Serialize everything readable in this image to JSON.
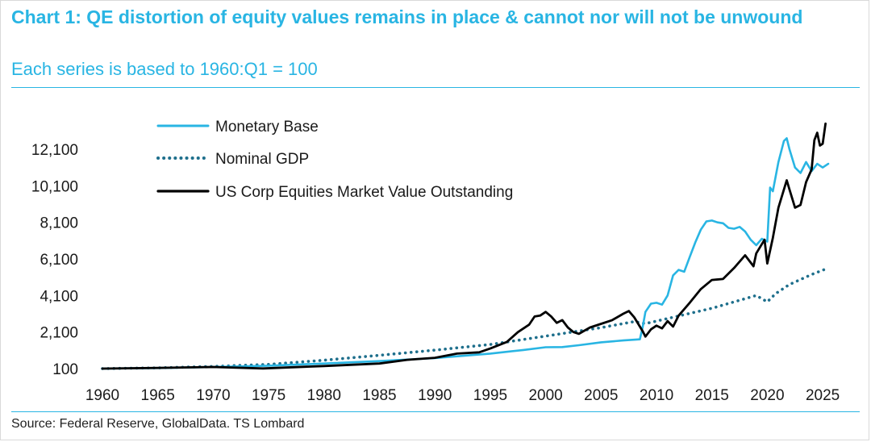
{
  "title": "Chart 1: QE distortion of equity values remains in place & cannot nor will not be unwound",
  "subtitle": "Each series is based to 1960:Q1 = 100",
  "source": "Source: Federal Reserve, GlobalData. TS Lombard",
  "colors": {
    "accent": "#29b5e3",
    "monetary_base": "#29b5e3",
    "nominal_gdp": "#1e6f8c",
    "equities": "#000000"
  },
  "chart_data": {
    "type": "line",
    "title": "Chart 1: QE distortion of equity values remains in place & cannot nor will not be unwound",
    "subtitle": "Each series is based to 1960:Q1 = 100",
    "xlabel": "",
    "ylabel": "",
    "xlim": [
      1960,
      2025.5
    ],
    "ylim": [
      100,
      12100
    ],
    "x_ticks": [
      1960,
      1965,
      1970,
      1975,
      1980,
      1985,
      1990,
      1995,
      2000,
      2005,
      2010,
      2015,
      2020,
      2025
    ],
    "y_ticks": [
      100,
      2100,
      4100,
      6100,
      8100,
      10100,
      12100
    ],
    "y_tick_labels": [
      "100",
      "2,100",
      "4,100",
      "6,100",
      "8,100",
      "10,100",
      "12,100"
    ],
    "grid": false,
    "legend_position": "top-left",
    "series": [
      {
        "name": "Monetary Base",
        "style": "solid",
        "points": [
          [
            1960,
            100
          ],
          [
            1965,
            130
          ],
          [
            1970,
            190
          ],
          [
            1975,
            260
          ],
          [
            1980,
            380
          ],
          [
            1985,
            510
          ],
          [
            1990,
            680
          ],
          [
            1995,
            920
          ],
          [
            1998,
            1120
          ],
          [
            2000,
            1270
          ],
          [
            2001.5,
            1280
          ],
          [
            2003,
            1380
          ],
          [
            2005,
            1540
          ],
          [
            2007,
            1640
          ],
          [
            2008.5,
            1700
          ],
          [
            2008.75,
            2350
          ],
          [
            2009,
            3200
          ],
          [
            2009.5,
            3650
          ],
          [
            2010,
            3700
          ],
          [
            2010.5,
            3600
          ],
          [
            2011,
            4100
          ],
          [
            2011.5,
            5200
          ],
          [
            2012,
            5500
          ],
          [
            2012.5,
            5400
          ],
          [
            2013,
            6200
          ],
          [
            2013.5,
            7000
          ],
          [
            2014,
            7700
          ],
          [
            2014.5,
            8150
          ],
          [
            2015,
            8200
          ],
          [
            2015.5,
            8100
          ],
          [
            2016,
            8050
          ],
          [
            2016.5,
            7800
          ],
          [
            2017,
            7750
          ],
          [
            2017.5,
            7850
          ],
          [
            2018,
            7600
          ],
          [
            2018.5,
            7150
          ],
          [
            2019,
            6850
          ],
          [
            2019.5,
            7200
          ],
          [
            2020,
            7050
          ],
          [
            2020.25,
            10000
          ],
          [
            2020.5,
            9800
          ],
          [
            2021,
            11400
          ],
          [
            2021.5,
            12550
          ],
          [
            2021.75,
            12700
          ],
          [
            2022,
            12100
          ],
          [
            2022.5,
            11100
          ],
          [
            2023,
            10800
          ],
          [
            2023.5,
            11400
          ],
          [
            2024,
            10900
          ],
          [
            2024.5,
            11300
          ],
          [
            2025,
            11100
          ],
          [
            2025.5,
            11300
          ]
        ]
      },
      {
        "name": "Nominal GDP",
        "style": "dotted",
        "points": [
          [
            1960,
            100
          ],
          [
            1965,
            140
          ],
          [
            1970,
            220
          ],
          [
            1975,
            330
          ],
          [
            1980,
            560
          ],
          [
            1985,
            830
          ],
          [
            1990,
            1110
          ],
          [
            1995,
            1420
          ],
          [
            2000,
            1880
          ],
          [
            2005,
            2340
          ],
          [
            2008,
            2670
          ],
          [
            2009,
            2560
          ],
          [
            2010,
            2700
          ],
          [
            2015,
            3400
          ],
          [
            2019,
            4100
          ],
          [
            2020,
            3750
          ],
          [
            2020.75,
            4200
          ],
          [
            2022,
            4700
          ],
          [
            2024,
            5250
          ],
          [
            2025.5,
            5600
          ]
        ]
      },
      {
        "name": "US Corp Equities Market Value Outstanding",
        "style": "solid",
        "points": [
          [
            1960,
            100
          ],
          [
            1965,
            140
          ],
          [
            1970,
            190
          ],
          [
            1974.5,
            110
          ],
          [
            1980,
            240
          ],
          [
            1985,
            380
          ],
          [
            1987.5,
            580
          ],
          [
            1990,
            690
          ],
          [
            1992,
            920
          ],
          [
            1994,
            990
          ],
          [
            1995,
            1200
          ],
          [
            1996.5,
            1560
          ],
          [
            1997.5,
            2100
          ],
          [
            1998.5,
            2500
          ],
          [
            1999,
            2950
          ],
          [
            1999.5,
            3000
          ],
          [
            2000,
            3200
          ],
          [
            2000.5,
            2950
          ],
          [
            2001,
            2600
          ],
          [
            2001.5,
            2750
          ],
          [
            2002,
            2350
          ],
          [
            2002.5,
            2100
          ],
          [
            2003,
            2000
          ],
          [
            2004,
            2350
          ],
          [
            2005,
            2550
          ],
          [
            2006,
            2750
          ],
          [
            2007,
            3100
          ],
          [
            2007.5,
            3250
          ],
          [
            2008,
            2900
          ],
          [
            2008.75,
            2150
          ],
          [
            2009,
            1850
          ],
          [
            2009.5,
            2250
          ],
          [
            2010,
            2450
          ],
          [
            2010.5,
            2300
          ],
          [
            2011,
            2700
          ],
          [
            2011.5,
            2400
          ],
          [
            2012,
            3000
          ],
          [
            2013,
            3700
          ],
          [
            2014,
            4450
          ],
          [
            2015,
            4950
          ],
          [
            2016,
            5000
          ],
          [
            2017,
            5600
          ],
          [
            2018,
            6300
          ],
          [
            2018.75,
            5700
          ],
          [
            2019,
            6400
          ],
          [
            2019.75,
            7150
          ],
          [
            2020,
            5850
          ],
          [
            2020.5,
            7250
          ],
          [
            2021,
            8900
          ],
          [
            2021.75,
            10400
          ],
          [
            2022,
            9900
          ],
          [
            2022.5,
            8900
          ],
          [
            2023,
            9050
          ],
          [
            2023.5,
            10300
          ],
          [
            2024,
            11000
          ],
          [
            2024.25,
            12600
          ],
          [
            2024.5,
            13000
          ],
          [
            2024.75,
            12300
          ],
          [
            2025,
            12400
          ],
          [
            2025.25,
            13500
          ]
        ]
      }
    ]
  }
}
